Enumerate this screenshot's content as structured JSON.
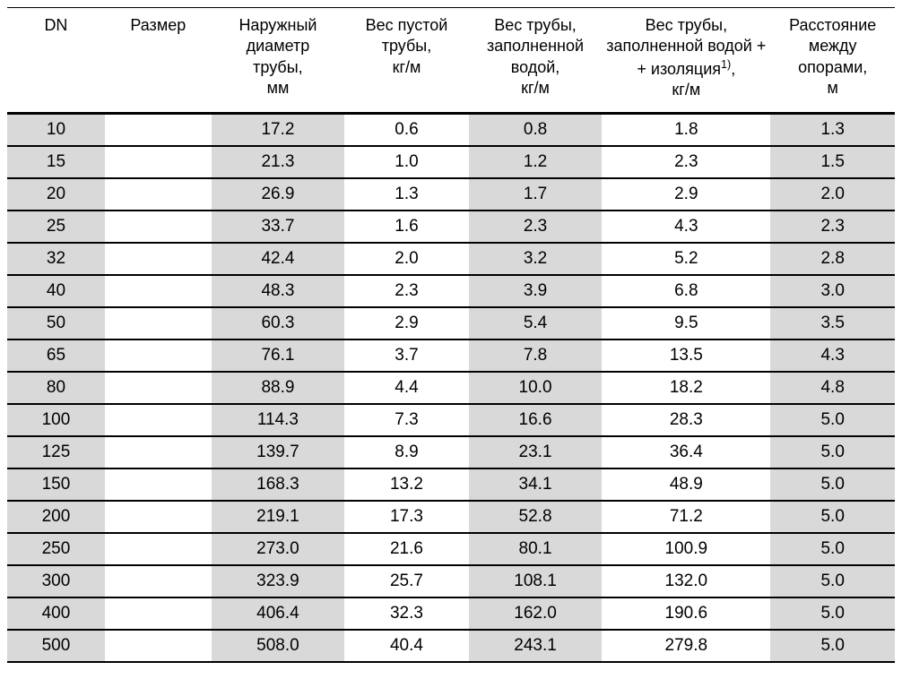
{
  "table": {
    "type": "table",
    "background_color": "#ffffff",
    "shaded_color": "#d9d9d9",
    "border_color": "#000000",
    "header_fontsize": 18,
    "cell_fontsize": 19,
    "text_color": "#000000",
    "columns": [
      {
        "key": "dn",
        "label": "DN",
        "width": "11%",
        "shaded": true
      },
      {
        "key": "size",
        "label": "Размер",
        "width": "12%",
        "shaded": false
      },
      {
        "key": "diameter",
        "label": "Наружный\nдиаметр\nтрубы,\nмм",
        "width": "15%",
        "shaded": true
      },
      {
        "key": "weight_empty",
        "label": "Вес пустой\nтрубы,\nкг/м",
        "width": "14%",
        "shaded": false
      },
      {
        "key": "weight_water",
        "label": "Вес трубы,\nзаполненной\nводой,\nкг/м",
        "width": "15%",
        "shaded": true
      },
      {
        "key": "weight_iso",
        "label": "Вес трубы,\nзаполненной водой +\n+ изоляция1),\nкг/м",
        "width": "19%",
        "shaded": false,
        "sup_after": "изоляция"
      },
      {
        "key": "distance",
        "label": "Расстояние\nмежду\nопорами,\nм",
        "width": "14%",
        "shaded": true
      }
    ],
    "rows": [
      {
        "dn": "10",
        "size": "",
        "diameter": "17.2",
        "weight_empty": "0.6",
        "weight_water": "0.8",
        "weight_iso": "1.8",
        "distance": "1.3"
      },
      {
        "dn": "15",
        "size": "",
        "diameter": "21.3",
        "weight_empty": "1.0",
        "weight_water": "1.2",
        "weight_iso": "2.3",
        "distance": "1.5"
      },
      {
        "dn": "20",
        "size": "",
        "diameter": "26.9",
        "weight_empty": "1.3",
        "weight_water": "1.7",
        "weight_iso": "2.9",
        "distance": "2.0"
      },
      {
        "dn": "25",
        "size": "",
        "diameter": "33.7",
        "weight_empty": "1.6",
        "weight_water": "2.3",
        "weight_iso": "4.3",
        "distance": "2.3"
      },
      {
        "dn": "32",
        "size": "",
        "diameter": "42.4",
        "weight_empty": "2.0",
        "weight_water": "3.2",
        "weight_iso": "5.2",
        "distance": "2.8"
      },
      {
        "dn": "40",
        "size": "",
        "diameter": "48.3",
        "weight_empty": "2.3",
        "weight_water": "3.9",
        "weight_iso": "6.8",
        "distance": "3.0"
      },
      {
        "dn": "50",
        "size": "",
        "diameter": "60.3",
        "weight_empty": "2.9",
        "weight_water": "5.4",
        "weight_iso": "9.5",
        "distance": "3.5"
      },
      {
        "dn": "65",
        "size": "",
        "diameter": "76.1",
        "weight_empty": "3.7",
        "weight_water": "7.8",
        "weight_iso": "13.5",
        "distance": "4.3"
      },
      {
        "dn": "80",
        "size": "",
        "diameter": "88.9",
        "weight_empty": "4.4",
        "weight_water": "10.0",
        "weight_iso": "18.2",
        "distance": "4.8"
      },
      {
        "dn": "100",
        "size": "",
        "diameter": "114.3",
        "weight_empty": "7.3",
        "weight_water": "16.6",
        "weight_iso": "28.3",
        "distance": "5.0"
      },
      {
        "dn": "125",
        "size": "",
        "diameter": "139.7",
        "weight_empty": "8.9",
        "weight_water": "23.1",
        "weight_iso": "36.4",
        "distance": "5.0"
      },
      {
        "dn": "150",
        "size": "",
        "diameter": "168.3",
        "weight_empty": "13.2",
        "weight_water": "34.1",
        "weight_iso": "48.9",
        "distance": "5.0"
      },
      {
        "dn": "200",
        "size": "",
        "diameter": "219.1",
        "weight_empty": "17.3",
        "weight_water": "52.8",
        "weight_iso": "71.2",
        "distance": "5.0"
      },
      {
        "dn": "250",
        "size": "",
        "diameter": "273.0",
        "weight_empty": "21.6",
        "weight_water": "80.1",
        "weight_iso": "100.9",
        "distance": "5.0"
      },
      {
        "dn": "300",
        "size": "",
        "diameter": "323.9",
        "weight_empty": "25.7",
        "weight_water": "108.1",
        "weight_iso": "132.0",
        "distance": "5.0"
      },
      {
        "dn": "400",
        "size": "",
        "diameter": "406.4",
        "weight_empty": "32.3",
        "weight_water": "162.0",
        "weight_iso": "190.6",
        "distance": "5.0"
      },
      {
        "dn": "500",
        "size": "",
        "diameter": "508.0",
        "weight_empty": "40.4",
        "weight_water": "243.1",
        "weight_iso": "279.8",
        "distance": "5.0"
      }
    ]
  }
}
